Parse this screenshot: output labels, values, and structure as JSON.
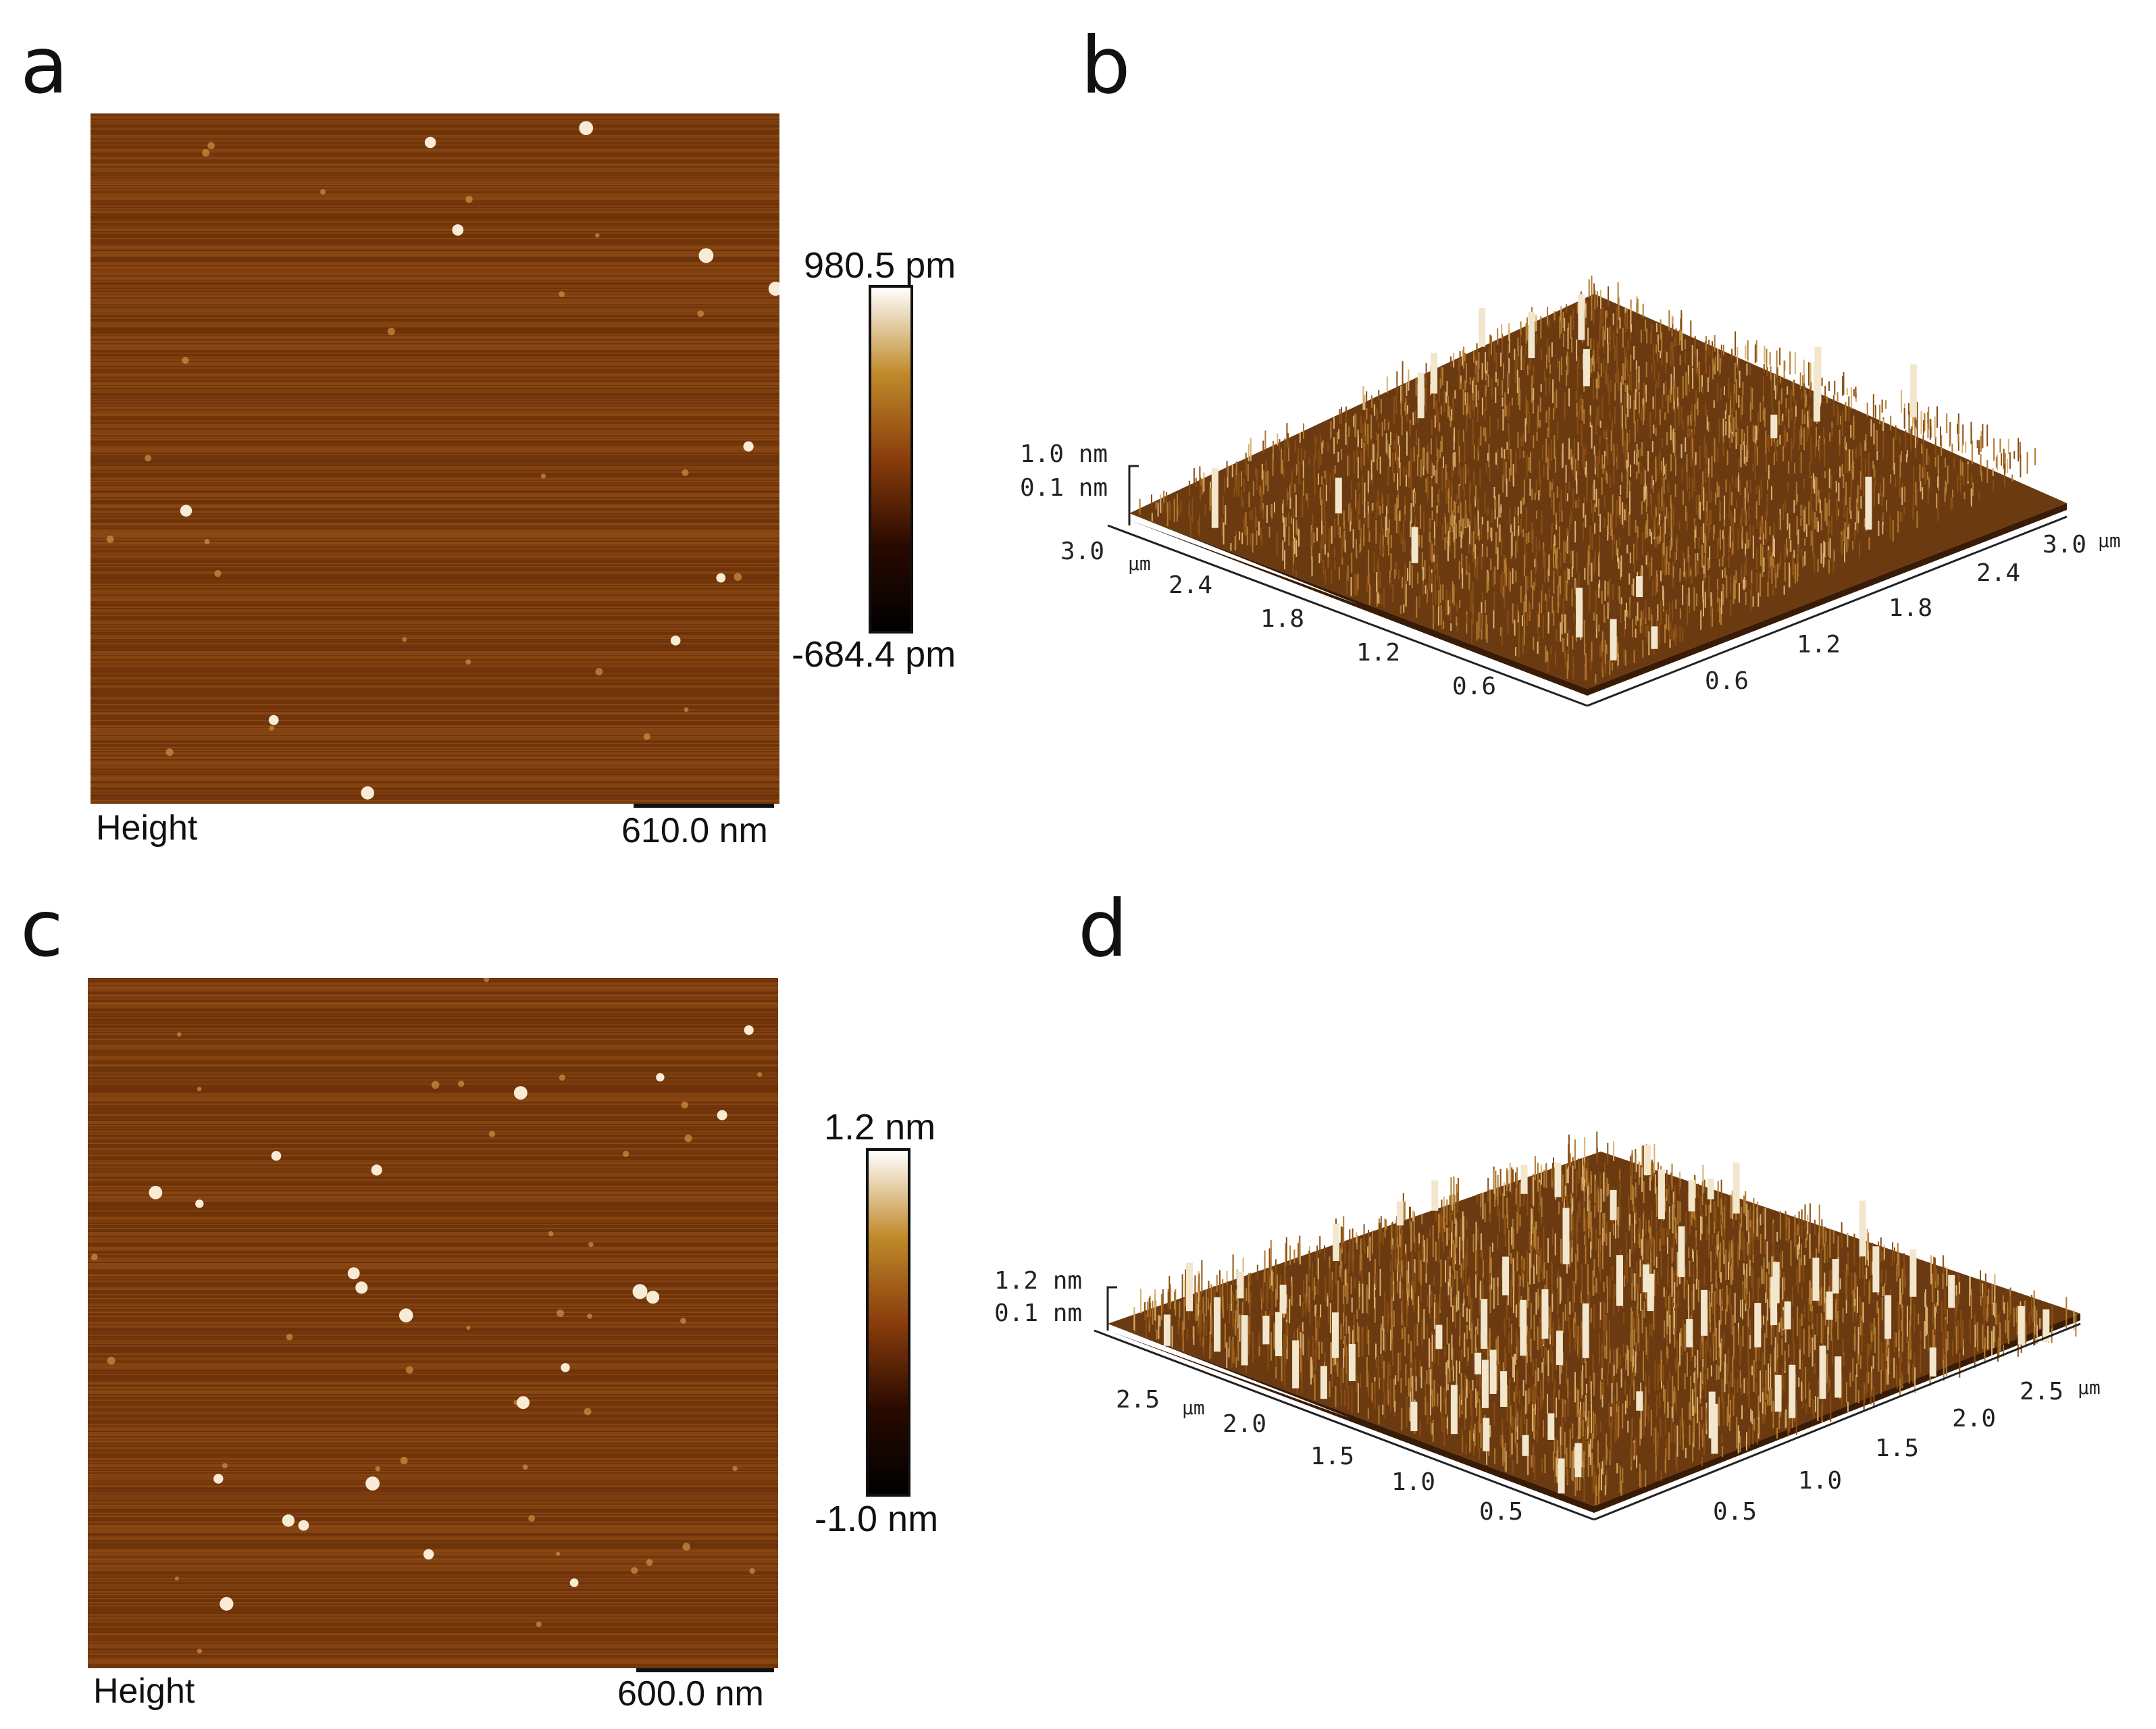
{
  "figure": {
    "panels": {
      "a": {
        "letter": "a",
        "image_label": "Height",
        "scale_bar": "610.0 nm",
        "colorbar_max": "980.5 pm",
        "colorbar_min": "-684.4 pm"
      },
      "b": {
        "letter": "b",
        "z_top": "1.0 nm",
        "z_bottom": "0.1 nm",
        "left_axis_ticks": [
          "3.0",
          "2.4",
          "1.8",
          "1.2",
          "0.6"
        ],
        "left_axis_unit": "µm",
        "right_axis_ticks": [
          "0.6",
          "1.2",
          "1.8",
          "2.4",
          "3.0"
        ],
        "right_axis_unit": "µm"
      },
      "c": {
        "letter": "c",
        "image_label": "Height",
        "scale_bar": "600.0 nm",
        "colorbar_max": "1.2 nm",
        "colorbar_min": "-1.0 nm"
      },
      "d": {
        "letter": "d",
        "z_top": "1.2 nm",
        "z_bottom": "0.1 nm",
        "left_axis_ticks": [
          "2.5",
          "2.0",
          "1.5",
          "1.0",
          "0.5"
        ],
        "left_axis_unit": "µm",
        "right_axis_ticks": [
          "0.5",
          "1.0",
          "1.5",
          "2.0",
          "2.5"
        ],
        "right_axis_unit": "µm"
      }
    },
    "colors": {
      "afm_base": "#7a3a0c",
      "afm_dark": "#4a1f05",
      "afm_bright": "#fff6e0",
      "colorbar_gradient": [
        "#ffffff",
        "#c08a2a",
        "#8a3d0c",
        "#2a0a00",
        "#000000"
      ]
    }
  }
}
